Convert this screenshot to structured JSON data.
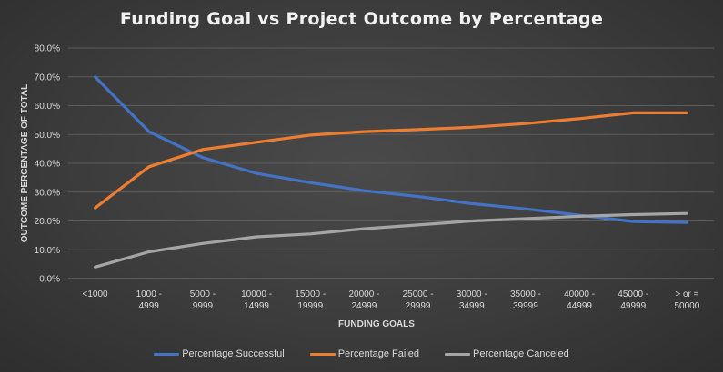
{
  "chart_data": {
    "type": "line",
    "title": "Funding Goal vs Project Outcome by Percentage",
    "xlabel": "FUNDING GOALS",
    "ylabel": "OUTCOME PERCENTAGE OF TOTAL",
    "categories": [
      [
        "<1000"
      ],
      [
        "1000 -",
        "4999"
      ],
      [
        "5000 -",
        "9999"
      ],
      [
        "10000 -",
        "14999"
      ],
      [
        "15000 -",
        "19999"
      ],
      [
        "20000 -",
        "24999"
      ],
      [
        "25000 -",
        "29999"
      ],
      [
        "30000 -",
        "34999"
      ],
      [
        "35000 -",
        "39999"
      ],
      [
        "40000 -",
        "44999"
      ],
      [
        "45000 -",
        "49999"
      ],
      [
        "> or =",
        "50000"
      ]
    ],
    "ylim": [
      0,
      80
    ],
    "yticks": [
      "0.0%",
      "10.0%",
      "20.0%",
      "30.0%",
      "40.0%",
      "50.0%",
      "60.0%",
      "70.0%",
      "80.0%"
    ],
    "grid": true,
    "legend_position": "bottom",
    "series": [
      {
        "name": "Percentage Successful",
        "color": "#4472c4",
        "values": [
          70.0,
          51.0,
          42.0,
          36.5,
          33.3,
          30.5,
          28.5,
          26.0,
          24.2,
          22.0,
          19.8,
          19.5
        ]
      },
      {
        "name": "Percentage Failed",
        "color": "#ed7d31",
        "values": [
          24.5,
          38.8,
          44.8,
          47.3,
          49.8,
          51.0,
          51.7,
          52.5,
          53.8,
          55.5,
          57.5,
          57.5
        ]
      },
      {
        "name": "Percentage Canceled",
        "color": "#a5a5a5",
        "values": [
          4.0,
          9.3,
          12.2,
          14.5,
          15.5,
          17.3,
          18.6,
          20.0,
          20.8,
          21.6,
          22.2,
          22.6
        ]
      }
    ]
  }
}
